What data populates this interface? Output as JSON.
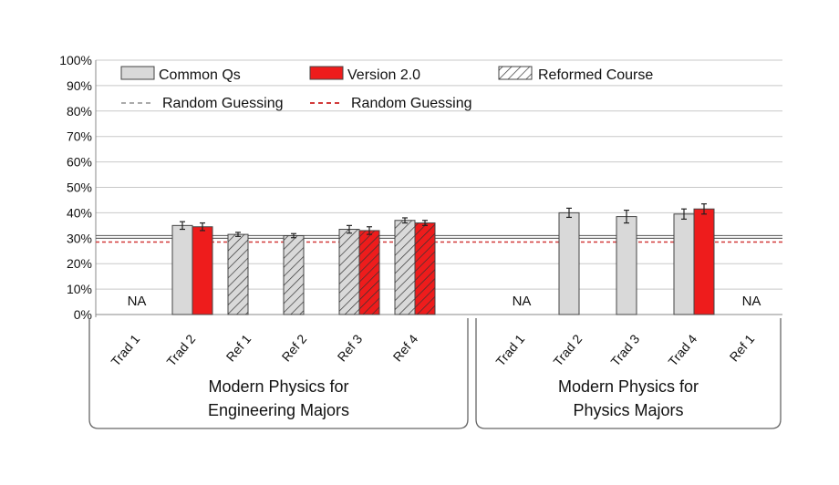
{
  "chart_data": {
    "type": "bar",
    "y_ticks": [
      "0%",
      "10%",
      "20%",
      "30%",
      "40%",
      "50%",
      "60%",
      "70%",
      "80%",
      "90%",
      "100%"
    ],
    "ylim": [
      0,
      100
    ],
    "grid": true,
    "legend_position": "top",
    "legend": {
      "common": "Common Qs",
      "version": "Version 2.0",
      "reformed": "Reformed Course",
      "random_common": "Random Guessing",
      "random_version": "Random Guessing"
    },
    "random_guessing": {
      "common": 30.5,
      "version": 28.5
    },
    "colors": {
      "common": "#d9d9d9",
      "version": "#ee1c1c",
      "random_common": "#aaaaaa",
      "random_version": "#d23a3a"
    },
    "groups": [
      {
        "label_line1": "Modern Physics for",
        "label_line2": "Engineering Majors",
        "categories": [
          {
            "label": "Trad 1",
            "na": "NA",
            "reformed": false,
            "common": null,
            "common_err": null,
            "version": null,
            "version_err": null
          },
          {
            "label": "Trad 2",
            "reformed": false,
            "common": 35,
            "common_err": 1.5,
            "version": 34.5,
            "version_err": 1.5
          },
          {
            "label": "Ref 1",
            "reformed": true,
            "common": 31.5,
            "common_err": 0.8,
            "version": null,
            "version_err": null
          },
          {
            "label": "Ref 2",
            "reformed": true,
            "common": 31,
            "common_err": 0.8,
            "version": null,
            "version_err": null
          },
          {
            "label": "Ref 3",
            "reformed": true,
            "common": 33.5,
            "common_err": 1.5,
            "version": 33,
            "version_err": 1.5
          },
          {
            "label": "Ref 4",
            "reformed": true,
            "common": 37,
            "common_err": 1,
            "version": 36,
            "version_err": 1
          }
        ]
      },
      {
        "label_line1": "Modern Physics for",
        "label_line2": "Physics Majors",
        "categories": [
          {
            "label": "Trad 1",
            "na": "NA",
            "reformed": false,
            "common": null,
            "common_err": null,
            "version": null,
            "version_err": null
          },
          {
            "label": "Trad 2",
            "reformed": false,
            "common": 40,
            "common_err": 1.8,
            "version": null,
            "version_err": null
          },
          {
            "label": "Trad 3",
            "reformed": false,
            "common": 38.5,
            "common_err": 2.5,
            "version": null,
            "version_err": null
          },
          {
            "label": "Trad 4",
            "reformed": false,
            "common": 39.5,
            "common_err": 2,
            "version": 41.5,
            "version_err": 2
          },
          {
            "label": "Ref 1",
            "na": "NA",
            "reformed": true,
            "common": null,
            "common_err": null,
            "version": null,
            "version_err": null
          }
        ]
      }
    ]
  }
}
